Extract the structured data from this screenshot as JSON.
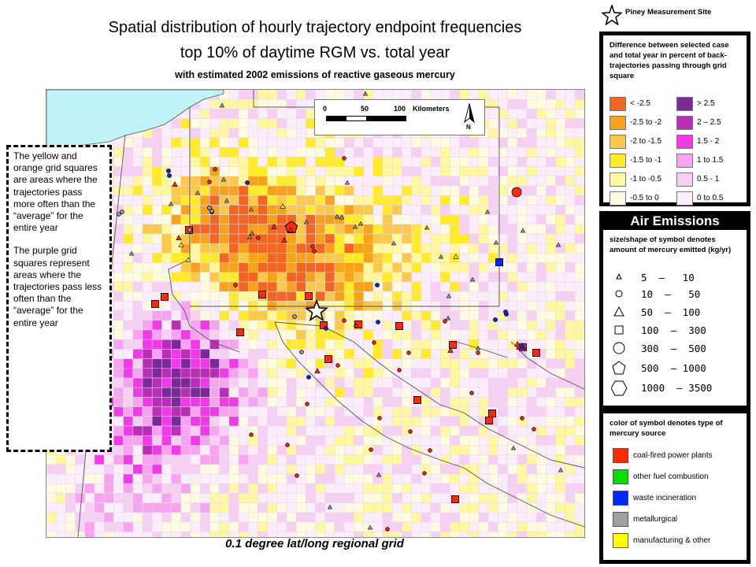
{
  "title": {
    "line1": "Spatial distribution of hourly trajectory endpoint frequencies",
    "line2": "top 10% of daytime RGM vs. total year",
    "line3": "with estimated 2002 emissions of reactive gaseous mercury"
  },
  "footer": "0.1 degree lat/long regional grid",
  "callout": {
    "p1": "The yellow and orange grid squares are areas where the trajectories pass more often than the “average” for the entire year",
    "p2": "The purple grid squares represent areas where the trajectories pass less often than the “average” for the entire year"
  },
  "scalebar": {
    "ticks": [
      "0",
      "50",
      "100"
    ],
    "unit": "Kilometers",
    "north": "N"
  },
  "site_label": "Piney Measurement Site",
  "difference_legend": {
    "title": "Difference between selected case and total year in percent of back-trajectories passing through grid square",
    "left": [
      {
        "label": "< -2.5",
        "color": "#f26522"
      },
      {
        "label": "-2.5 to -2",
        "color": "#f7a21b"
      },
      {
        "label": "-2 to -1.5",
        "color": "#fbc94a"
      },
      {
        "label": "-1.5 to -1",
        "color": "#ffeb2a"
      },
      {
        "label": "-1 to -0.5",
        "color": "#fff8a0"
      },
      {
        "label": "-0.5 to 0",
        "color": "#fffbe0"
      }
    ],
    "right": [
      {
        "label": "> 2.5",
        "color": "#7a2a96"
      },
      {
        "label": "2 – 2.5",
        "color": "#b62fb4"
      },
      {
        "label": "1.5 - 2",
        "color": "#ee3be6"
      },
      {
        "label": "1 to 1.5",
        "color": "#f7a3f0"
      },
      {
        "label": "0.5 - 1",
        "color": "#f6d0f3"
      },
      {
        "label": "0 to 0.5",
        "color": "#fbedf9"
      }
    ]
  },
  "emissions_legend": {
    "title": "Air Emissions",
    "subtitle": "size/shape of symbol denotes amount of mercury emitted (kg/yr)",
    "ranges": [
      {
        "symbol": "small-triangle",
        "label": "5  –   10"
      },
      {
        "symbol": "small-circle",
        "label": "10  –   50"
      },
      {
        "symbol": "triangle",
        "label": "50  –  100"
      },
      {
        "symbol": "square",
        "label": "100  –  300"
      },
      {
        "symbol": "circle",
        "label": "300  –  500"
      },
      {
        "symbol": "pentagon",
        "label": "500  – 1000"
      },
      {
        "symbol": "hexagon",
        "label": "1000  – 3500"
      }
    ]
  },
  "source_legend": {
    "title": "color of symbol denotes type of mercury source",
    "items": [
      {
        "label": "coal-fired power plants",
        "color": "#ff2a00"
      },
      {
        "label": "other fuel combustion",
        "color": "#00e000"
      },
      {
        "label": "waste incineration",
        "color": "#0026ff"
      },
      {
        "label": "metallurgical",
        "color": "#a0a0a0"
      },
      {
        "label": "manufacturing & other",
        "color": "#ffff00"
      }
    ]
  },
  "colors": {
    "lake": "#bff3f7",
    "map_background": "#f3e6f6",
    "boundary": "#555555"
  }
}
